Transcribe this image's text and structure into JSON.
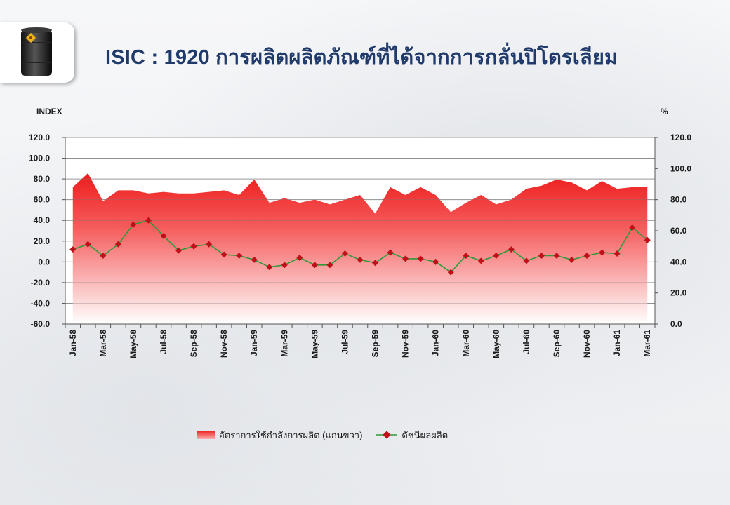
{
  "page": {
    "title": "ISIC : 1920 การผลิตผลิตภัณฑ์ที่ได้จากการกลั่นปิโตรเลียม",
    "logo_icon": "oil-barrel-icon"
  },
  "chart_data": {
    "type": "line",
    "left_axis_label": "INDEX",
    "right_axis_label": "%",
    "left_ylim": [
      -60,
      120
    ],
    "left_ticks": [
      "120.0",
      "100.0",
      "80.0",
      "60.0",
      "40.0",
      "20.0",
      "0.0",
      "-20.0",
      "-40.0",
      "-60.0"
    ],
    "right_ylim": [
      0,
      120
    ],
    "right_ticks": [
      "120.0",
      "100.0",
      "80.0",
      "60.0",
      "40.0",
      "20.0",
      "0.0"
    ],
    "x": [
      "Jan-58",
      "Feb-58",
      "Mar-58",
      "Apr-58",
      "May-58",
      "Jun-58",
      "Jul-58",
      "Aug-58",
      "Sep-58",
      "Oct-58",
      "Nov-58",
      "Dec-58",
      "Jan-59",
      "Feb-59",
      "Mar-59",
      "Apr-59",
      "May-59",
      "Jun-59",
      "Jul-59",
      "Aug-59",
      "Sep-59",
      "Oct-59",
      "Nov-59",
      "Dec-59",
      "Jan-60",
      "Feb-60",
      "Mar-60",
      "Apr-60",
      "May-60",
      "Jun-60",
      "Jul-60",
      "Aug-60",
      "Sep-60",
      "Oct-60",
      "Nov-60",
      "Dec-60",
      "Jan-61",
      "Feb-61",
      "Mar-61"
    ],
    "x_tick_labels": [
      "Jan-58",
      "Mar-58",
      "May-58",
      "Jul-58",
      "Sep-58",
      "Nov-58",
      "Jan-59",
      "Mar-59",
      "May-59",
      "Jul-59",
      "Sep-59",
      "Nov-59",
      "Jan-60",
      "Mar-60",
      "May-60",
      "Jul-60",
      "Sep-60",
      "Nov-60",
      "Jan-61",
      "Mar-61"
    ],
    "grid": true,
    "legend_position": "bottom",
    "series": [
      {
        "name": "อัตราการใช้กำลังการผลิต (แกนขวา)",
        "type": "area",
        "axis": "right",
        "color": "#ee1c1c",
        "values": [
          88,
          97,
          79,
          86,
          86,
          84,
          85,
          84,
          84,
          85,
          86,
          83,
          93,
          78,
          81,
          78,
          80,
          77,
          80,
          83,
          71,
          88,
          83,
          88,
          83,
          72,
          78,
          83,
          77,
          80,
          87,
          89,
          93,
          91,
          86,
          92,
          87,
          88,
          88
        ]
      },
      {
        "name": "ดัชนีผลผลิต",
        "type": "line",
        "axis": "left",
        "color": "#2e9a3a",
        "marker_color": "#c0101a",
        "values": [
          12,
          17,
          6,
          17,
          36,
          40,
          25,
          11,
          15,
          17,
          7,
          6,
          2,
          -5,
          -3,
          4,
          -3,
          -3,
          8,
          2,
          -1,
          9,
          3,
          3,
          0,
          -10,
          6,
          1,
          6,
          12,
          1,
          6,
          6,
          2,
          6,
          9,
          8,
          33,
          21
        ]
      }
    ]
  }
}
